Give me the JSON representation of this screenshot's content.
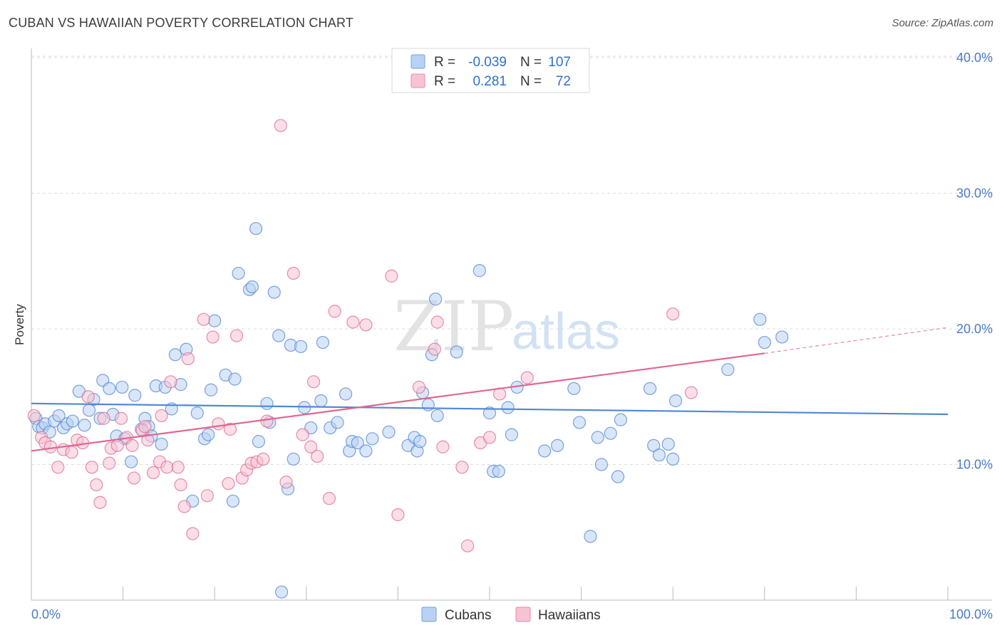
{
  "header": {
    "title": "CUBAN VS HAWAIIAN POVERTY CORRELATION CHART",
    "source": "Source: ZipAtlas.com"
  },
  "watermark": {
    "zip": "ZIP",
    "atlas": "atlas"
  },
  "legend_top": {
    "rows": [
      {
        "r_label": "R =",
        "r_value": "-0.039",
        "n_label": "N =",
        "n_value": "107",
        "color": "#6fa2e0",
        "fill": "#b9d1f2"
      },
      {
        "r_label": "R =",
        "r_value": "0.281",
        "n_label": "N =",
        "n_value": "72",
        "color": "#e98aa9",
        "fill": "#f7c3d3"
      }
    ]
  },
  "legend_bottom": {
    "items": [
      {
        "label": "Cubans",
        "color": "#6fa2e0",
        "fill": "#b9d1f2"
      },
      {
        "label": "Hawaiians",
        "color": "#e98aa9",
        "fill": "#f7c3d3"
      }
    ]
  },
  "chart_data": {
    "type": "scatter",
    "title": "CUBAN VS HAWAIIAN POVERTY CORRELATION CHART",
    "ylabel": "Poverty",
    "xlabel": "",
    "x_tick_labels": [
      "0.0%",
      "100.0%"
    ],
    "y_tick_labels": [
      "10.0%",
      "20.0%",
      "30.0%",
      "40.0%"
    ],
    "y_ticks": [
      10,
      20,
      30,
      40
    ],
    "xlim": [
      0,
      100
    ],
    "ylim": [
      0,
      41
    ],
    "grid": true,
    "legend": "top-center",
    "series": [
      {
        "name": "Cubans",
        "color": "#4f86d6",
        "fill": "#b9d1f2",
        "trend": {
          "x": [
            0,
            100
          ],
          "y": [
            14.5,
            13.7
          ],
          "style": "solid"
        },
        "points": [
          [
            0.5,
            13.4
          ],
          [
            0.8,
            12.8
          ],
          [
            1.2,
            12.7
          ],
          [
            1.5,
            13.0
          ],
          [
            2.0,
            12.4
          ],
          [
            2.5,
            13.2
          ],
          [
            3.0,
            13.6
          ],
          [
            3.5,
            12.7
          ],
          [
            3.9,
            13.0
          ],
          [
            4.5,
            13.2
          ],
          [
            5.2,
            15.4
          ],
          [
            5.8,
            12.9
          ],
          [
            6.3,
            14.0
          ],
          [
            6.8,
            14.8
          ],
          [
            7.5,
            13.4
          ],
          [
            7.8,
            16.2
          ],
          [
            8.5,
            15.6
          ],
          [
            8.9,
            13.7
          ],
          [
            9.3,
            12.1
          ],
          [
            9.9,
            15.7
          ],
          [
            10.2,
            11.9
          ],
          [
            10.9,
            10.2
          ],
          [
            11.3,
            15.1
          ],
          [
            12.0,
            12.6
          ],
          [
            12.4,
            13.4
          ],
          [
            12.8,
            12.8
          ],
          [
            13.1,
            12.1
          ],
          [
            13.6,
            15.8
          ],
          [
            14.2,
            11.5
          ],
          [
            14.6,
            15.7
          ],
          [
            15.3,
            14.1
          ],
          [
            15.7,
            18.1
          ],
          [
            16.3,
            15.9
          ],
          [
            16.9,
            18.5
          ],
          [
            17.6,
            7.3
          ],
          [
            18.1,
            13.8
          ],
          [
            18.9,
            11.9
          ],
          [
            19.3,
            12.2
          ],
          [
            19.6,
            15.5
          ],
          [
            20.0,
            20.6
          ],
          [
            21.2,
            16.6
          ],
          [
            22.0,
            7.3
          ],
          [
            22.2,
            16.3
          ],
          [
            22.6,
            24.1
          ],
          [
            23.8,
            22.9
          ],
          [
            24.1,
            23.1
          ],
          [
            24.5,
            27.4
          ],
          [
            24.8,
            11.7
          ],
          [
            25.7,
            14.5
          ],
          [
            26.0,
            13.1
          ],
          [
            26.5,
            22.7
          ],
          [
            27.0,
            19.5
          ],
          [
            27.3,
            0.6
          ],
          [
            28.0,
            8.2
          ],
          [
            28.3,
            18.8
          ],
          [
            28.6,
            10.4
          ],
          [
            29.4,
            18.7
          ],
          [
            29.8,
            14.2
          ],
          [
            30.5,
            12.7
          ],
          [
            31.6,
            14.7
          ],
          [
            31.8,
            19.0
          ],
          [
            32.6,
            12.7
          ],
          [
            33.4,
            13.1
          ],
          [
            34.3,
            15.2
          ],
          [
            34.7,
            11.0
          ],
          [
            35.0,
            11.7
          ],
          [
            35.6,
            11.6
          ],
          [
            36.5,
            11.0
          ],
          [
            37.2,
            11.9
          ],
          [
            39.0,
            12.4
          ],
          [
            41.1,
            11.4
          ],
          [
            41.8,
            12.0
          ],
          [
            42.1,
            11.0
          ],
          [
            42.4,
            11.7
          ],
          [
            42.7,
            15.3
          ],
          [
            43.3,
            14.4
          ],
          [
            43.7,
            18.1
          ],
          [
            44.1,
            22.2
          ],
          [
            44.3,
            13.6
          ],
          [
            46.4,
            18.3
          ],
          [
            48.9,
            24.3
          ],
          [
            50.0,
            13.8
          ],
          [
            50.4,
            9.5
          ],
          [
            52.4,
            12.2
          ],
          [
            51.0,
            9.5
          ],
          [
            53.0,
            15.7
          ],
          [
            52.0,
            14.2
          ],
          [
            57.4,
            11.4
          ],
          [
            59.2,
            15.6
          ],
          [
            59.8,
            13.1
          ],
          [
            61.8,
            12.0
          ],
          [
            62.2,
            10.0
          ],
          [
            61.0,
            4.7
          ],
          [
            64.0,
            9.1
          ],
          [
            63.2,
            12.3
          ],
          [
            64.3,
            13.3
          ],
          [
            67.5,
            15.6
          ],
          [
            67.9,
            11.4
          ],
          [
            68.5,
            10.7
          ],
          [
            69.5,
            11.5
          ],
          [
            70.3,
            14.7
          ],
          [
            70.0,
            10.4
          ],
          [
            76.0,
            17.0
          ],
          [
            79.5,
            20.7
          ],
          [
            80.0,
            19.0
          ],
          [
            81.9,
            19.4
          ],
          [
            56.0,
            11.0
          ]
        ]
      },
      {
        "name": "Hawaiians",
        "color": "#e0688e",
        "fill": "#f7c3d3",
        "trend": {
          "x": [
            0,
            80,
            100
          ],
          "y": [
            11.0,
            18.2,
            20.1
          ],
          "style": "solid-then-dashed"
        },
        "points": [
          [
            0.3,
            13.6
          ],
          [
            1.1,
            12.0
          ],
          [
            1.5,
            11.6
          ],
          [
            2.1,
            11.3
          ],
          [
            2.9,
            9.8
          ],
          [
            3.5,
            11.1
          ],
          [
            4.4,
            10.9
          ],
          [
            5.0,
            11.8
          ],
          [
            5.6,
            11.6
          ],
          [
            6.2,
            15.0
          ],
          [
            6.6,
            9.8
          ],
          [
            7.1,
            8.5
          ],
          [
            7.5,
            7.2
          ],
          [
            7.9,
            13.4
          ],
          [
            8.5,
            10.1
          ],
          [
            8.7,
            11.2
          ],
          [
            9.4,
            11.4
          ],
          [
            9.8,
            13.4
          ],
          [
            10.4,
            12.0
          ],
          [
            11.0,
            11.4
          ],
          [
            11.2,
            9.0
          ],
          [
            12.1,
            12.5
          ],
          [
            12.4,
            12.8
          ],
          [
            12.7,
            11.8
          ],
          [
            13.3,
            9.4
          ],
          [
            14.0,
            10.2
          ],
          [
            14.2,
            13.6
          ],
          [
            14.8,
            9.8
          ],
          [
            15.2,
            16.1
          ],
          [
            16.0,
            9.8
          ],
          [
            16.3,
            8.5
          ],
          [
            16.7,
            6.9
          ],
          [
            17.1,
            17.8
          ],
          [
            17.6,
            4.9
          ],
          [
            18.8,
            20.7
          ],
          [
            19.2,
            7.7
          ],
          [
            19.8,
            19.4
          ],
          [
            20.4,
            13.0
          ],
          [
            21.5,
            8.6
          ],
          [
            21.7,
            12.6
          ],
          [
            22.4,
            19.5
          ],
          [
            23.0,
            9.0
          ],
          [
            23.5,
            9.6
          ],
          [
            24.0,
            10.1
          ],
          [
            24.6,
            10.2
          ],
          [
            25.3,
            10.4
          ],
          [
            25.7,
            13.2
          ],
          [
            27.2,
            35.0
          ],
          [
            27.8,
            8.7
          ],
          [
            28.6,
            24.1
          ],
          [
            29.6,
            12.2
          ],
          [
            30.5,
            11.3
          ],
          [
            30.8,
            16.1
          ],
          [
            31.2,
            10.6
          ],
          [
            32.5,
            7.5
          ],
          [
            33.1,
            21.3
          ],
          [
            35.1,
            20.5
          ],
          [
            36.5,
            20.3
          ],
          [
            39.3,
            23.9
          ],
          [
            40.0,
            6.3
          ],
          [
            42.3,
            15.7
          ],
          [
            44.3,
            20.5
          ],
          [
            44.0,
            18.5
          ],
          [
            44.9,
            11.3
          ],
          [
            47.0,
            9.8
          ],
          [
            47.6,
            4.0
          ],
          [
            49.0,
            11.6
          ],
          [
            50.0,
            12.0
          ],
          [
            51.1,
            15.2
          ],
          [
            54.1,
            16.4
          ],
          [
            70.0,
            21.1
          ],
          [
            72.0,
            15.3
          ]
        ]
      }
    ]
  }
}
